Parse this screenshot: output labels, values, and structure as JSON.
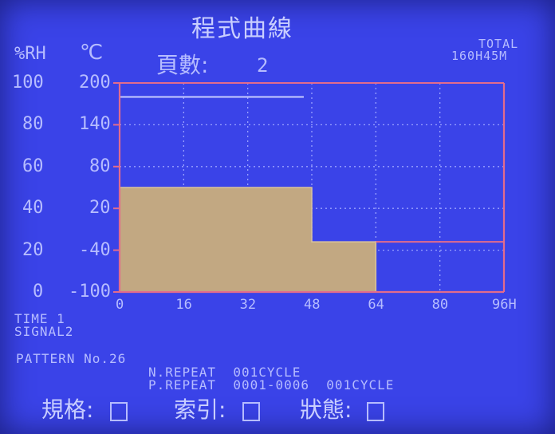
{
  "header": {
    "title": "程式曲線",
    "humidity_unit": "%RH",
    "temperature_unit": "℃",
    "page_label": "頁數:",
    "page_value": "2",
    "total_label": "TOTAL",
    "total_value": "160H45M"
  },
  "chart_data": {
    "type": "area",
    "x_ticks": [
      "0",
      "16",
      "32",
      "48",
      "64",
      "80",
      "96H"
    ],
    "humidity_ticks": [
      "0",
      "20",
      "40",
      "60",
      "80",
      "100"
    ],
    "temperature_ticks": [
      "-100",
      "-40",
      "20",
      "80",
      "140",
      "200"
    ],
    "xlim": [
      0,
      96
    ],
    "ylim_humidity": [
      0,
      100
    ],
    "ylim_temperature": [
      -100,
      200
    ],
    "series": [
      {
        "x": [
          0,
          48,
          48,
          64,
          64
        ],
        "y_humidity": [
          50,
          50,
          24,
          24,
          0
        ]
      }
    ],
    "reference_lines": [
      {
        "y_temperature": 200,
        "x_from": 0,
        "x_to": 96
      },
      {
        "y_temperature": 180,
        "x_from": 0,
        "x_to": 46
      },
      {
        "y_temperature": -28,
        "x_from": 64,
        "x_to": 96
      }
    ],
    "grid": true,
    "colors": {
      "fill": "#c2a882",
      "axis": "#e26c8c",
      "grid": "#9aa2ff"
    }
  },
  "info": {
    "time": "TIME 1",
    "signal": "SIGNAL2",
    "pattern": "PATTERN No.26",
    "n_repeat": "N.REPEAT  001CYCLE",
    "p_repeat": "P.REPEAT  0001-0006  001CYCLE"
  },
  "footer": {
    "spec_label": "規格:",
    "index_label": "索引:",
    "status_label": "狀態:"
  }
}
